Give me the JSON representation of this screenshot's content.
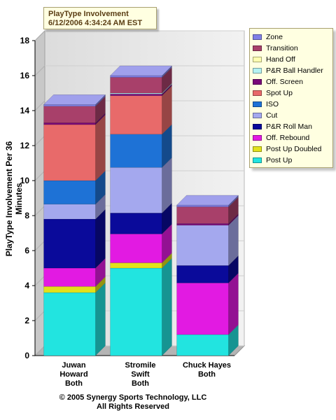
{
  "title": {
    "line1": "PlayType Involvement",
    "line2": "6/12/2006 4:34:24 AM EST"
  },
  "ylabel": "PlayType Involvement Per 36 Minutes",
  "copyright": {
    "line1": "© 2005 Synergy Sports Technology, LLC",
    "line2": "All Rights Reserved"
  },
  "chart_data": {
    "type": "bar",
    "stacked": true,
    "categories": [
      [
        "Juwan",
        "Howard",
        "Both"
      ],
      [
        "Stromile",
        "Swift",
        "Both"
      ],
      [
        "Chuck Hayes",
        "Both"
      ]
    ],
    "ylim": [
      0,
      18
    ],
    "yticks": [
      0,
      2,
      4,
      6,
      8,
      10,
      12,
      14,
      16,
      18
    ],
    "legend_order": [
      "Zone",
      "Transition",
      "Hand Off",
      "P&R Ball Handler",
      "Off. Screen",
      "Spot Up",
      "ISO",
      "Cut",
      "P&R Roll Man",
      "Off. Rebound",
      "Post Up Doubled",
      "Post Up"
    ],
    "series": [
      {
        "name": "Post Up",
        "color": "#22e4e0",
        "values": [
          3.6,
          5.0,
          1.2
        ]
      },
      {
        "name": "Post Up Doubled",
        "color": "#e2e21a",
        "values": [
          0.35,
          0.3,
          0.0
        ]
      },
      {
        "name": "Off. Rebound",
        "color": "#e21ae2",
        "values": [
          1.05,
          1.65,
          2.95
        ]
      },
      {
        "name": "P&R Roll Man",
        "color": "#0a0a9a",
        "values": [
          2.8,
          1.2,
          1.0
        ]
      },
      {
        "name": "Cut",
        "color": "#a4a8ee",
        "values": [
          0.85,
          2.6,
          2.3
        ]
      },
      {
        "name": "ISO",
        "color": "#1e72d6",
        "values": [
          1.35,
          1.9,
          0.0
        ]
      },
      {
        "name": "Spot Up",
        "color": "#e86a6a",
        "values": [
          3.2,
          2.2,
          0.0
        ]
      },
      {
        "name": "Off. Screen",
        "color": "#7a0a7a",
        "values": [
          0.1,
          0.1,
          0.1
        ]
      },
      {
        "name": "P&R Ball Handler",
        "color": "#b4f2f2",
        "values": [
          0.0,
          0.05,
          0.0
        ]
      },
      {
        "name": "Hand Off",
        "color": "#ffffb0",
        "values": [
          0.0,
          0.0,
          0.0
        ]
      },
      {
        "name": "Transition",
        "color": "#a8406a",
        "values": [
          0.95,
          0.9,
          0.95
        ]
      },
      {
        "name": "Zone",
        "color": "#8080e6",
        "values": [
          0.1,
          0.1,
          0.1
        ]
      }
    ],
    "grid": true,
    "legend_position": "right"
  }
}
